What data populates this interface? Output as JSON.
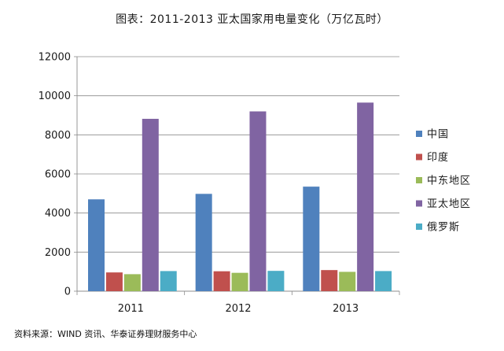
{
  "chart_data": {
    "type": "bar",
    "title": "图表：2011-2013 亚太国家用电量变化（万亿瓦时）",
    "categories": [
      "2011",
      "2012",
      "2013"
    ],
    "ylim": [
      0,
      12000
    ],
    "yticks": [
      0,
      2000,
      4000,
      6000,
      8000,
      10000,
      12000
    ],
    "grid": true,
    "legend_position": "right",
    "series": [
      {
        "name": "中国",
        "color": "#4F81BD",
        "values": [
          4700,
          4980,
          5350
        ]
      },
      {
        "name": "印度",
        "color": "#C0504D",
        "values": [
          960,
          1020,
          1080
        ]
      },
      {
        "name": "中东地区",
        "color": "#9BBB59",
        "values": [
          870,
          940,
          990
        ]
      },
      {
        "name": "亚太地区",
        "color": "#8064A2",
        "values": [
          8820,
          9200,
          9650
        ]
      },
      {
        "name": "俄罗斯",
        "color": "#4BACC6",
        "values": [
          1030,
          1040,
          1030
        ]
      }
    ]
  },
  "source": "资料来源：WIND 资讯、华泰证券理财服务中心"
}
